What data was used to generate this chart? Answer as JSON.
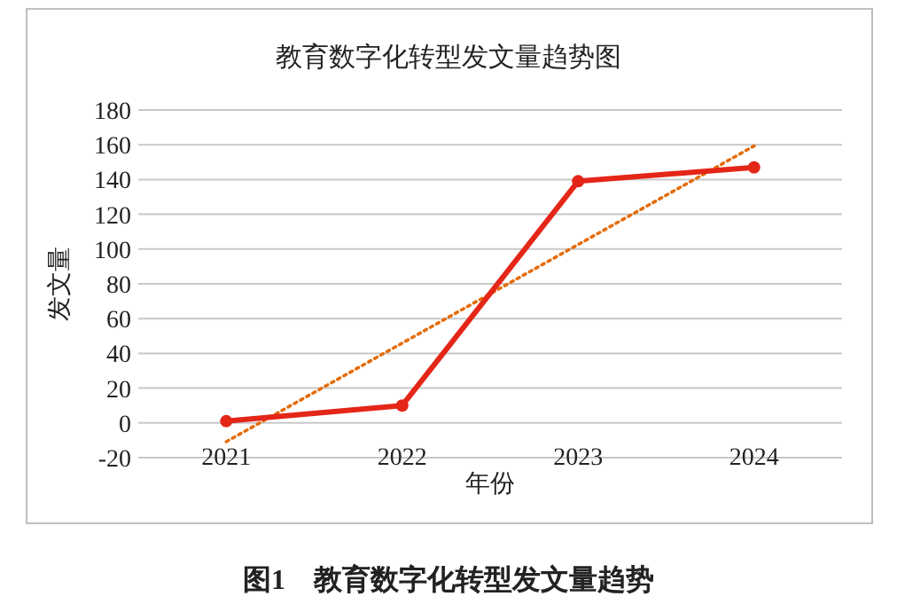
{
  "chart_data": {
    "type": "line",
    "title": "教育数字化转型发文量趋势图",
    "xlabel": "年份",
    "ylabel": "发文量",
    "categories": [
      "2021",
      "2022",
      "2023",
      "2024"
    ],
    "series": [
      {
        "color": "#e42618",
        "values": [
          1,
          10,
          139,
          147
        ],
        "marker": "circle",
        "line_style": "solid"
      },
      {
        "color": "#e46c0a",
        "values": [
          -10.8,
          45.9,
          102.6,
          159.3
        ],
        "marker": "none",
        "line_style": "dotted"
      }
    ],
    "ylim": [
      -20,
      180
    ],
    "yticks": [
      -20,
      0,
      20,
      40,
      60,
      80,
      100,
      120,
      140,
      160,
      180
    ],
    "grid": "y",
    "annotations": [
      "图1　教育数字化转型发文量趋势"
    ]
  }
}
